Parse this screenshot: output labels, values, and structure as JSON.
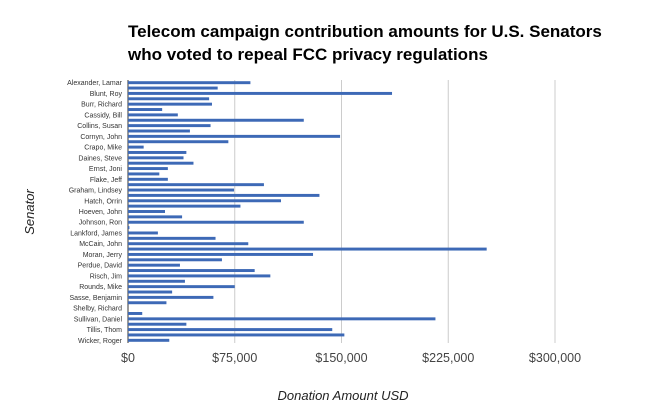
{
  "chart_data": {
    "type": "bar",
    "orientation": "horizontal",
    "title": "Telecom campaign contribution amounts for U.S. Senators who voted to repeal FCC privacy regulations",
    "xlabel": "Donation Amount USD",
    "ylabel": "Senator",
    "xlim": [
      0,
      300000
    ],
    "xticks": [
      0,
      75000,
      150000,
      225000,
      300000
    ],
    "xtick_labels": [
      "$0",
      "$75,000",
      "$150,000",
      "$225,000",
      "$300,000"
    ],
    "grid": "vertical",
    "bar_color": "#3d69b6",
    "ytick_labels": [
      "Alexander, Lamar",
      "Blunt, Roy",
      "Burr, Richard",
      "Cassidy, Bill",
      "Collins, Susan",
      "Cornyn, John",
      "Crapo, Mike",
      "Daines, Steve",
      "Ernst, Joni",
      "Flake, Jeff",
      "Graham, Lindsey",
      "Hatch, Orrin",
      "Hoeven, John",
      "Johnson, Ron",
      "Lankford, James",
      "McCain, John",
      "Moran, Jerry",
      "Perdue, David",
      "Risch, Jim",
      "Rounds, Mike",
      "Sasse, Benjamin",
      "Shelby, Richard",
      "Sullivan, Daniel",
      "Tillis, Thom",
      "Wicker, Roger"
    ],
    "values": [
      86000,
      63000,
      185500,
      57000,
      59000,
      24000,
      35000,
      123500,
      58000,
      43500,
      149000,
      70500,
      11000,
      41000,
      39000,
      46000,
      28000,
      22000,
      28000,
      95500,
      74500,
      134500,
      107500,
      79000,
      26000,
      38000,
      123500,
      1000,
      21000,
      61500,
      84500,
      252000,
      130000,
      66000,
      36500,
      89000,
      100000,
      40000,
      75000,
      31000,
      60000,
      27000,
      0,
      10000,
      216000,
      41000,
      143500,
      152000,
      29000
    ]
  }
}
